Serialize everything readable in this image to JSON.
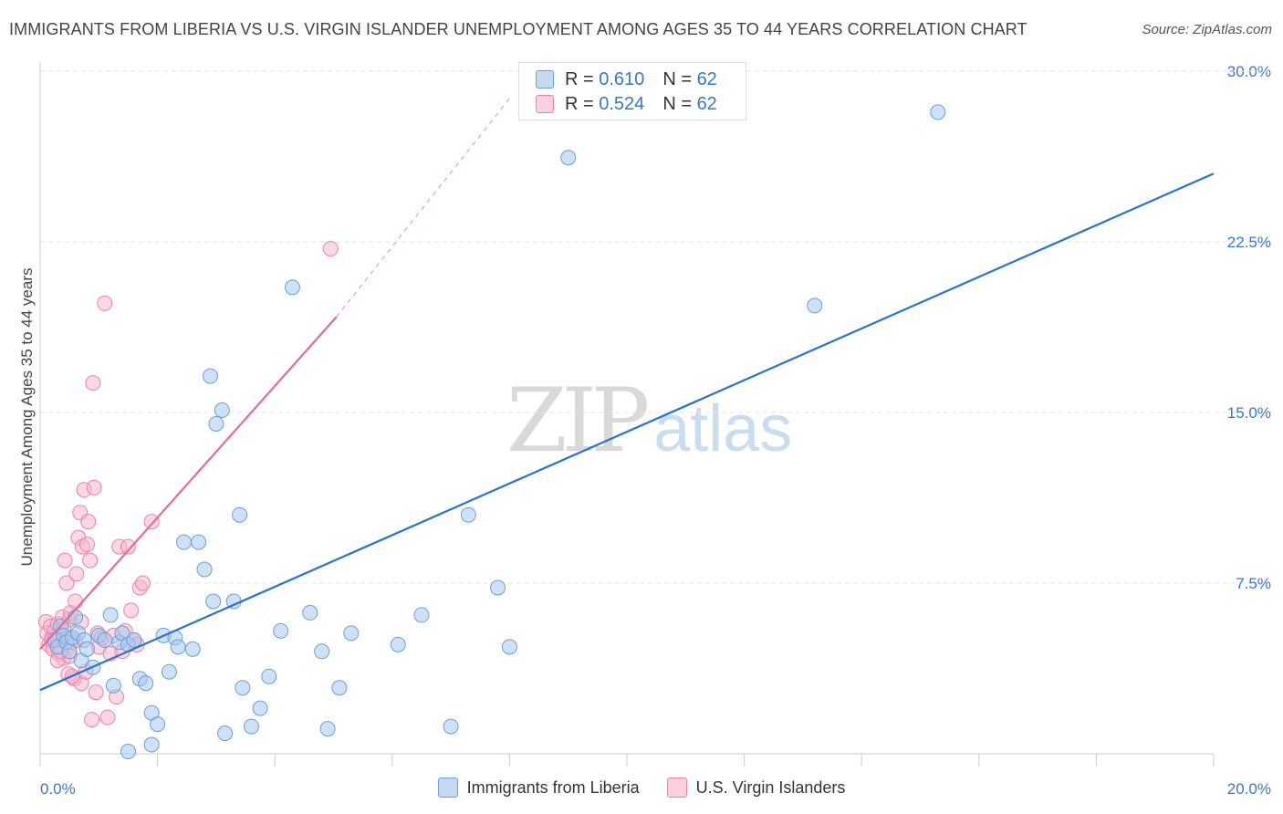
{
  "chart_data": {
    "type": "scatter",
    "title": "IMMIGRANTS FROM LIBERIA VS U.S. VIRGIN ISLANDER UNEMPLOYMENT AMONG AGES 35 TO 44 YEARS CORRELATION CHART",
    "source": "Source: ZipAtlas.com",
    "xlabel": "",
    "ylabel": "Unemployment Among Ages 35 to 44 years",
    "xlim": [
      0,
      20
    ],
    "ylim": [
      0,
      30
    ],
    "x_tick_labels": [
      "0.0%",
      "20.0%"
    ],
    "y_ticks": [
      7.5,
      15.0,
      22.5,
      30.0
    ],
    "y_tick_labels": [
      "7.5%",
      "15.0%",
      "22.5%",
      "30.0%"
    ],
    "grid": true,
    "watermark": {
      "zip": "ZIP",
      "atlas": "atlas"
    },
    "series": [
      {
        "name": "Immigrants from Liberia",
        "color": "#a8c8ef",
        "stroke": "#6c9fd8",
        "line_color": "#2b72cf",
        "r": "0.610",
        "n": "62",
        "trend": {
          "x0": 0.0,
          "y0": 2.8,
          "x1": 20.0,
          "y1": 25.5
        },
        "points": [
          [
            0.25,
            5.0
          ],
          [
            0.3,
            4.7
          ],
          [
            0.35,
            5.6
          ],
          [
            0.4,
            5.2
          ],
          [
            0.45,
            4.9
          ],
          [
            0.5,
            4.5
          ],
          [
            0.55,
            5.1
          ],
          [
            0.6,
            6.0
          ],
          [
            0.65,
            5.3
          ],
          [
            0.7,
            4.1
          ],
          [
            0.75,
            5.0
          ],
          [
            0.8,
            4.6
          ],
          [
            0.9,
            3.8
          ],
          [
            1.0,
            5.2
          ],
          [
            1.1,
            5.0
          ],
          [
            1.2,
            6.1
          ],
          [
            1.25,
            3.0
          ],
          [
            1.35,
            4.9
          ],
          [
            1.4,
            5.3
          ],
          [
            1.5,
            4.8
          ],
          [
            1.6,
            5.0
          ],
          [
            1.7,
            3.3
          ],
          [
            1.8,
            3.1
          ],
          [
            1.9,
            1.8
          ],
          [
            2.0,
            1.3
          ],
          [
            2.1,
            5.2
          ],
          [
            2.2,
            3.6
          ],
          [
            2.3,
            5.1
          ],
          [
            2.35,
            4.7
          ],
          [
            2.45,
            9.3
          ],
          [
            2.6,
            4.6
          ],
          [
            2.7,
            9.3
          ],
          [
            2.8,
            8.1
          ],
          [
            2.9,
            16.6
          ],
          [
            2.95,
            6.7
          ],
          [
            3.0,
            14.5
          ],
          [
            3.1,
            15.1
          ],
          [
            3.15,
            0.9
          ],
          [
            3.3,
            6.7
          ],
          [
            3.4,
            10.5
          ],
          [
            3.45,
            2.9
          ],
          [
            3.6,
            1.2
          ],
          [
            3.75,
            2.0
          ],
          [
            3.9,
            3.4
          ],
          [
            4.1,
            5.4
          ],
          [
            4.3,
            20.5
          ],
          [
            4.6,
            6.2
          ],
          [
            4.8,
            4.5
          ],
          [
            4.9,
            1.1
          ],
          [
            5.1,
            2.9
          ],
          [
            5.3,
            5.3
          ],
          [
            6.1,
            4.8
          ],
          [
            6.5,
            6.1
          ],
          [
            7.0,
            1.2
          ],
          [
            7.3,
            10.5
          ],
          [
            7.8,
            7.3
          ],
          [
            8.0,
            4.7
          ],
          [
            9.0,
            26.2
          ],
          [
            13.2,
            19.7
          ],
          [
            15.3,
            28.2
          ],
          [
            1.9,
            0.4
          ],
          [
            1.5,
            0.1
          ]
        ]
      },
      {
        "name": "U.S. Virgin Islanders",
        "color": "#f7b8cd",
        "stroke": "#e884a7",
        "line_color": "#e36b98",
        "r": "0.524",
        "n": "62",
        "trend": {
          "x0": 0.0,
          "y0": 4.6,
          "x1": 5.05,
          "y1": 19.2
        },
        "trend_dashed": {
          "x0": 5.05,
          "y0": 19.2,
          "x1": 8.0,
          "y1": 28.8
        },
        "points": [
          [
            0.1,
            5.8
          ],
          [
            0.12,
            5.3
          ],
          [
            0.15,
            4.8
          ],
          [
            0.18,
            5.6
          ],
          [
            0.2,
            5.1
          ],
          [
            0.22,
            4.6
          ],
          [
            0.25,
            5.4
          ],
          [
            0.28,
            5.0
          ],
          [
            0.3,
            5.7
          ],
          [
            0.32,
            4.4
          ],
          [
            0.35,
            5.2
          ],
          [
            0.38,
            6.0
          ],
          [
            0.4,
            4.2
          ],
          [
            0.42,
            8.5
          ],
          [
            0.45,
            7.5
          ],
          [
            0.48,
            3.5
          ],
          [
            0.5,
            5.9
          ],
          [
            0.52,
            6.2
          ],
          [
            0.55,
            4.9
          ],
          [
            0.58,
            3.3
          ],
          [
            0.6,
            6.7
          ],
          [
            0.62,
            7.9
          ],
          [
            0.65,
            9.5
          ],
          [
            0.68,
            10.6
          ],
          [
            0.7,
            3.1
          ],
          [
            0.72,
            9.1
          ],
          [
            0.75,
            11.6
          ],
          [
            0.78,
            3.6
          ],
          [
            0.8,
            9.2
          ],
          [
            0.82,
            10.2
          ],
          [
            0.85,
            8.5
          ],
          [
            0.88,
            1.5
          ],
          [
            0.9,
            16.3
          ],
          [
            0.92,
            11.7
          ],
          [
            0.95,
            2.7
          ],
          [
            0.98,
            5.3
          ],
          [
            1.0,
            4.7
          ],
          [
            1.05,
            5.1
          ],
          [
            1.1,
            19.8
          ],
          [
            1.15,
            1.6
          ],
          [
            1.2,
            4.4
          ],
          [
            1.25,
            5.2
          ],
          [
            1.3,
            2.5
          ],
          [
            1.35,
            9.1
          ],
          [
            1.4,
            4.5
          ],
          [
            1.45,
            5.4
          ],
          [
            1.5,
            9.1
          ],
          [
            1.55,
            6.3
          ],
          [
            1.6,
            5.0
          ],
          [
            1.65,
            4.8
          ],
          [
            1.7,
            7.3
          ],
          [
            1.75,
            7.5
          ],
          [
            1.9,
            10.2
          ],
          [
            4.95,
            22.2
          ],
          [
            0.3,
            4.1
          ],
          [
            0.4,
            5.5
          ],
          [
            0.5,
            4.3
          ],
          [
            0.6,
            5.0
          ],
          [
            0.7,
            5.8
          ],
          [
            0.2,
            5.0
          ],
          [
            0.35,
            4.5
          ],
          [
            0.55,
            3.4
          ]
        ]
      }
    ]
  }
}
